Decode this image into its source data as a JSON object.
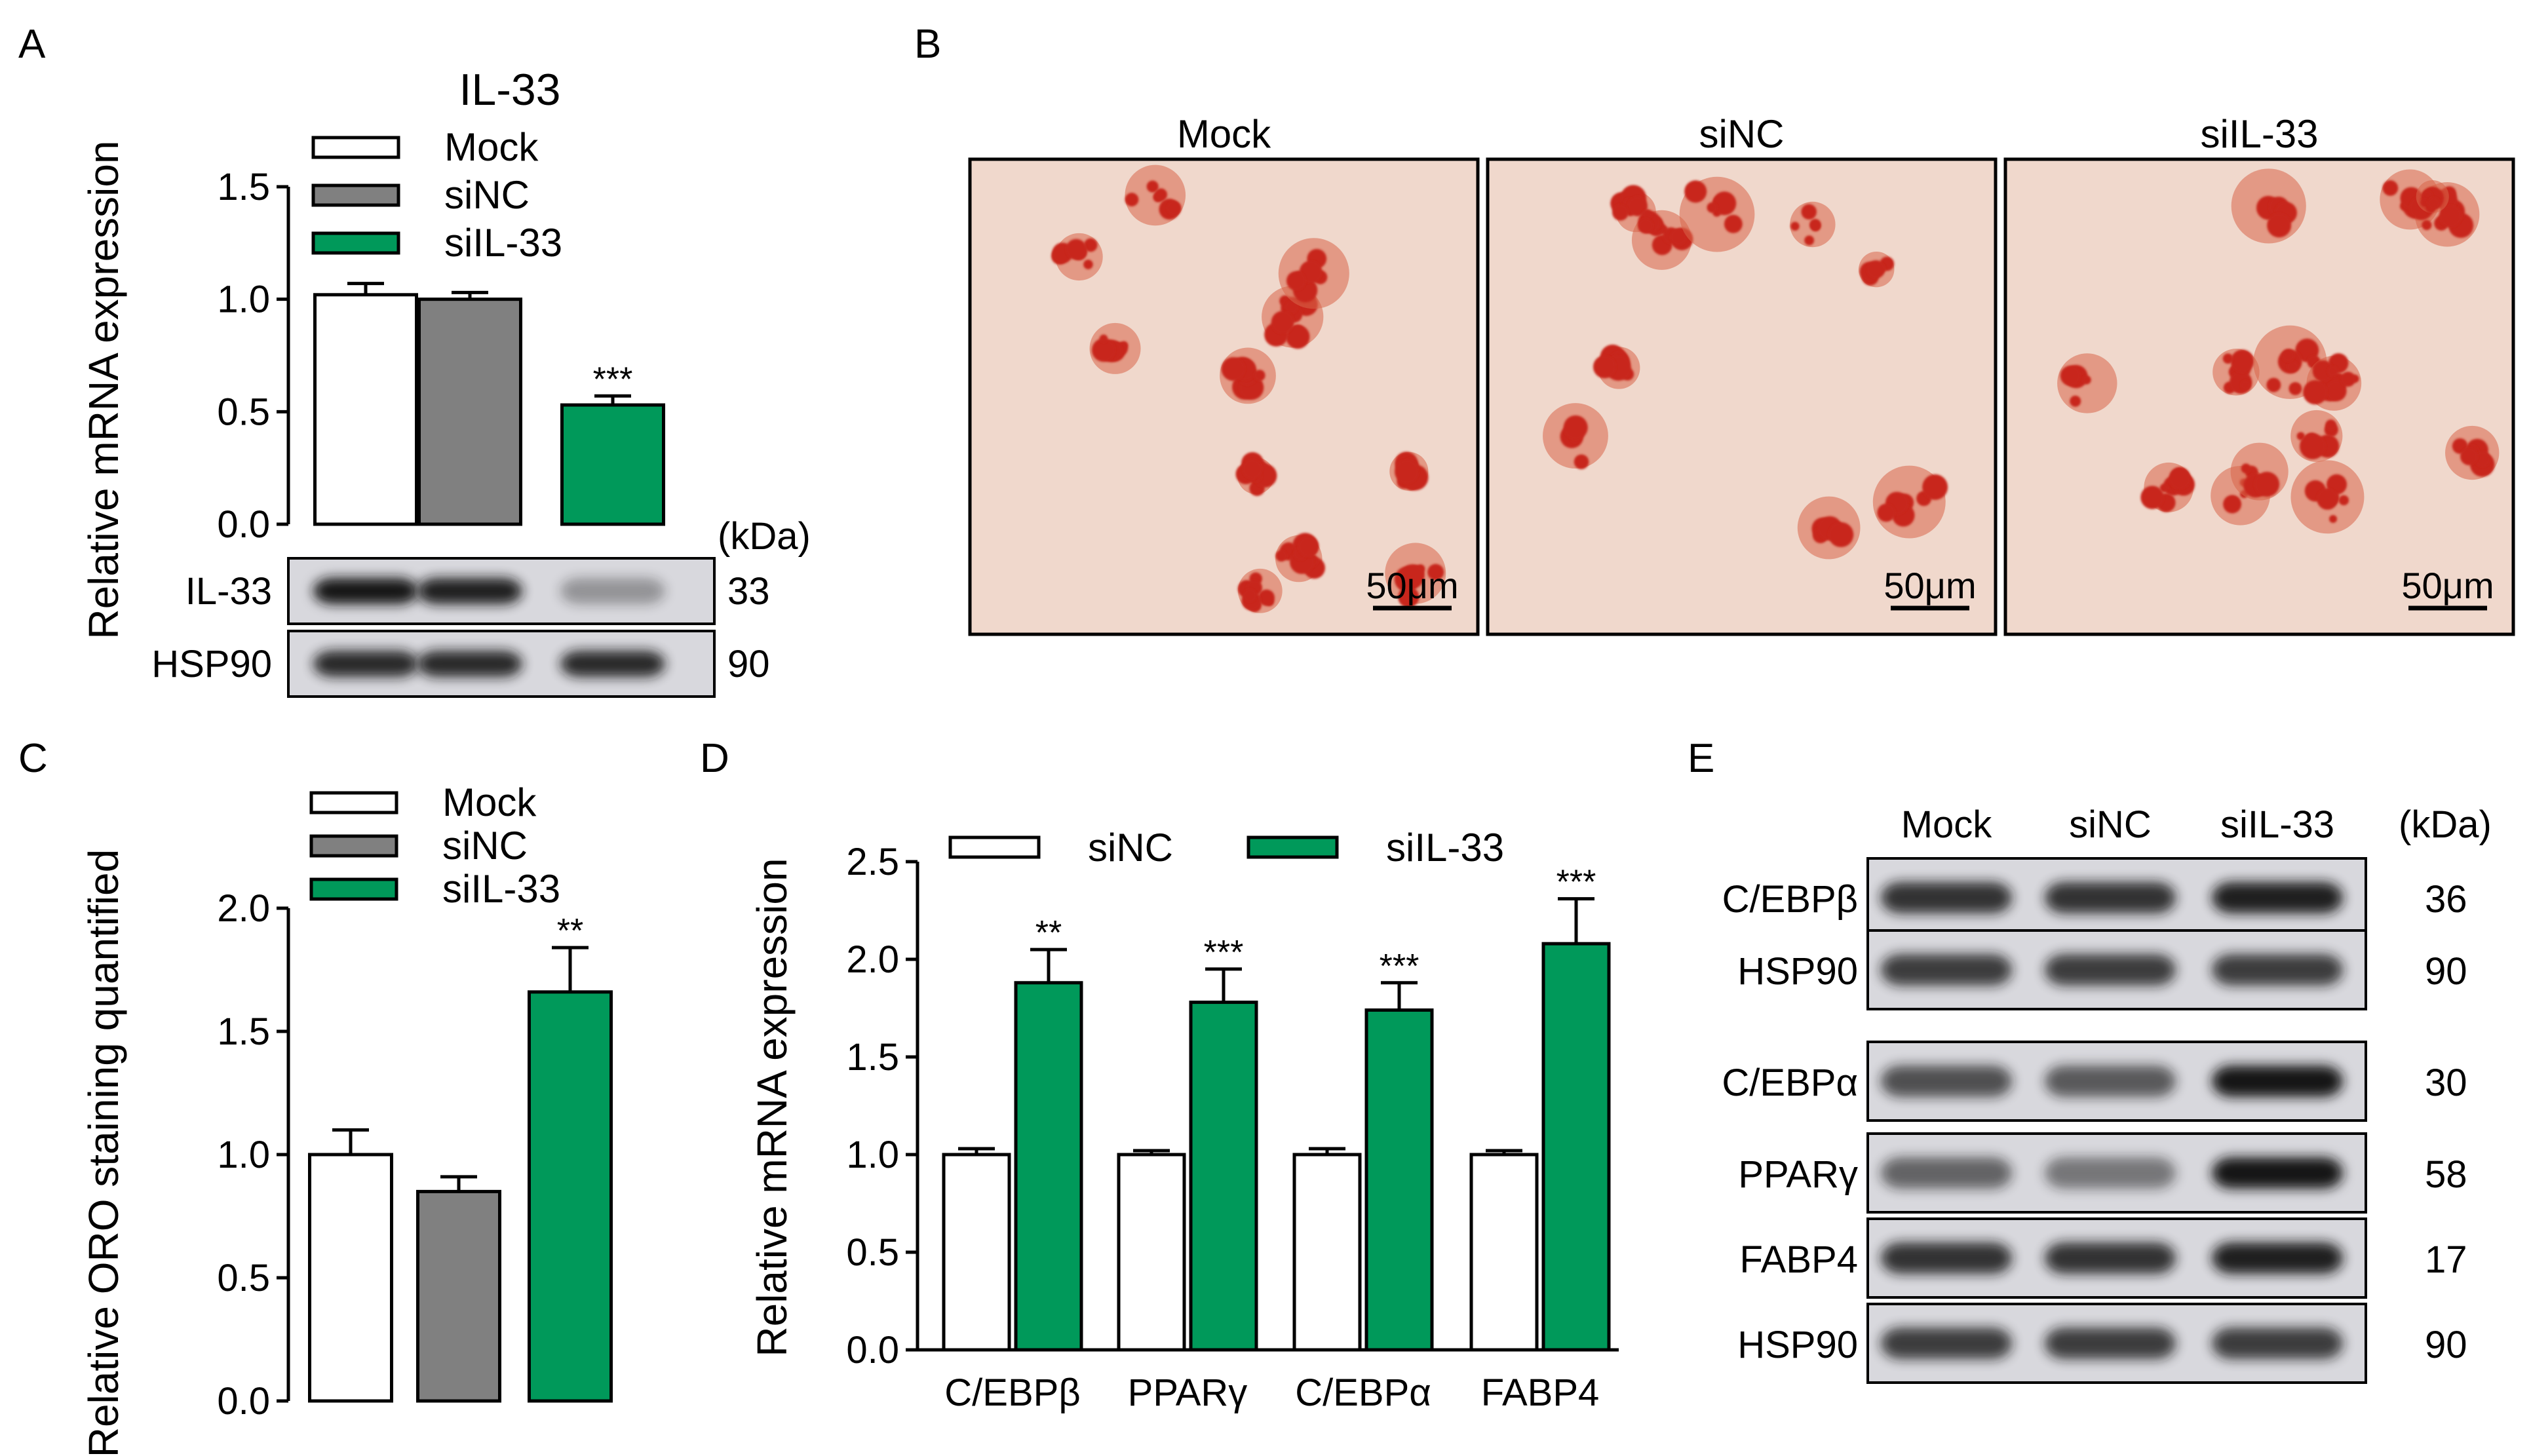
{
  "colors": {
    "mock": "#ffffff",
    "sinc": "#808080",
    "siil33": "#00995a",
    "stain_bg": "#f0d8cc",
    "stain_red": "#c8281c",
    "blot_bg": "#d8d8dd",
    "blot_band": "#141414"
  },
  "panels": {
    "a": "A",
    "b": "B",
    "c": "C",
    "d": "D",
    "e": "E"
  },
  "kda_label": "(kDa)",
  "chart_data": [
    {
      "id": "A",
      "type": "bar",
      "title": "IL-33",
      "ylabel": "Relative mRNA expression",
      "ylim": [
        0,
        1.5
      ],
      "yticks": [
        "0.0",
        "0.5",
        "1.0",
        "1.5"
      ],
      "categories": [
        "Mock",
        "siNC",
        "siIL-33"
      ],
      "legend": [
        "Mock",
        "siNC",
        "siIL-33"
      ],
      "values": [
        1.02,
        1.0,
        0.53
      ],
      "errors": [
        0.05,
        0.03,
        0.04
      ],
      "significance": [
        "",
        "",
        "***"
      ],
      "legend_position": "top"
    },
    {
      "id": "C",
      "type": "bar",
      "ylabel": "Relative ORO staining quantified",
      "ylim": [
        0,
        2.0
      ],
      "yticks": [
        "0.0",
        "0.5",
        "1.0",
        "1.5",
        "2.0"
      ],
      "categories": [
        "Mock",
        "siNC",
        "siIL-33"
      ],
      "legend": [
        "Mock",
        "siNC",
        "siIL-33"
      ],
      "values": [
        1.0,
        0.85,
        1.66
      ],
      "errors": [
        0.1,
        0.06,
        0.18
      ],
      "significance": [
        "",
        "",
        "**"
      ],
      "legend_position": "top"
    },
    {
      "id": "D",
      "type": "bar",
      "ylabel": "Relative mRNA expression",
      "ylim": [
        0,
        2.5
      ],
      "yticks": [
        "0.0",
        "0.5",
        "1.0",
        "1.5",
        "2.0",
        "2.5"
      ],
      "categories": [
        "C/EBPβ",
        "PPARγ",
        "C/EBPα",
        "FABP4"
      ],
      "series": [
        {
          "name": "siNC",
          "values": [
            1.0,
            1.0,
            1.0,
            1.0
          ],
          "errors": [
            0.03,
            0.02,
            0.03,
            0.02
          ],
          "significance": [
            "",
            "",
            "",
            ""
          ]
        },
        {
          "name": "siIL-33",
          "values": [
            1.88,
            1.78,
            1.74,
            2.08
          ],
          "errors": [
            0.17,
            0.17,
            0.14,
            0.23
          ],
          "significance": [
            "**",
            "***",
            "***",
            "***"
          ]
        }
      ],
      "legend_position": "top"
    }
  ],
  "blot_a": {
    "rows": [
      {
        "label": "IL-33",
        "kda": "33",
        "intensity": [
          1.0,
          0.95,
          0.35
        ]
      },
      {
        "label": "HSP90",
        "kda": "90",
        "intensity": [
          0.9,
          0.9,
          0.9
        ]
      }
    ]
  },
  "staining": {
    "panels": [
      {
        "label": "Mock",
        "scale": "50μm",
        "density": 0.6
      },
      {
        "label": "siNC",
        "scale": "50μm",
        "density": 0.5
      },
      {
        "label": "siIL-33",
        "scale": "50μm",
        "density": 0.8
      }
    ]
  },
  "blot_e": {
    "columns": [
      "Mock",
      "siNC",
      "siIL-33"
    ],
    "groups": [
      [
        {
          "label": "C/EBPβ",
          "kda": "36",
          "intensity": [
            0.85,
            0.85,
            0.95
          ]
        },
        {
          "label": "HSP90",
          "kda": "90",
          "intensity": [
            0.8,
            0.8,
            0.8
          ]
        }
      ],
      [
        {
          "label": "C/EBPα",
          "kda": "30",
          "intensity": [
            0.7,
            0.65,
            1.0
          ]
        },
        {
          "label": "PPARγ",
          "kda": "58",
          "intensity": [
            0.6,
            0.5,
            1.0
          ]
        },
        {
          "label": "FABP4",
          "kda": "17",
          "intensity": [
            0.85,
            0.85,
            0.95
          ]
        },
        {
          "label": "HSP90",
          "kda": "90",
          "intensity": [
            0.8,
            0.8,
            0.8
          ]
        }
      ]
    ]
  }
}
